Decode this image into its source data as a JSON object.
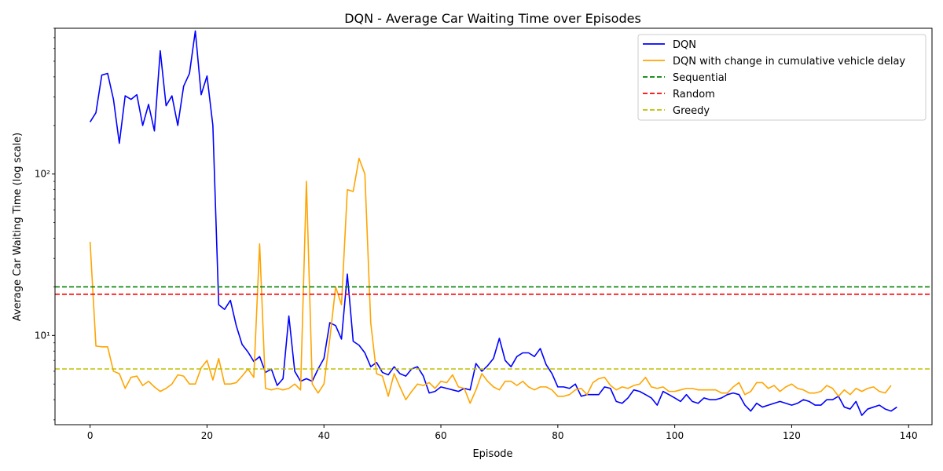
{
  "chart_data": {
    "type": "line",
    "title": "DQN - Average Car Waiting Time over Episodes",
    "xlabel": "Episode",
    "ylabel": "Average Car Waiting Time (log scale)",
    "xlim": [
      -6,
      144
    ],
    "ylim": [
      2.8,
      800
    ],
    "yscale": "log",
    "x_ticks": [
      0,
      20,
      40,
      60,
      80,
      100,
      120,
      140
    ],
    "y_ticks": [
      10,
      100
    ],
    "y_tick_labels": [
      "10¹",
      "10²"
    ],
    "grid": false,
    "legend_position": "top-right",
    "series": [
      {
        "name": "DQN",
        "color": "#0000ff",
        "style": "solid",
        "x_start": 0,
        "values": [
          210,
          240,
          410,
          420,
          290,
          155,
          305,
          290,
          310,
          200,
          270,
          185,
          580,
          265,
          305,
          200,
          350,
          420,
          770,
          310,
          405,
          200,
          15.5,
          14.5,
          16.5,
          11.5,
          8.8,
          7.9,
          6.9,
          7.4,
          5.9,
          6.2,
          4.9,
          5.4,
          13.2,
          6.0,
          5.2,
          5.4,
          5.2,
          6.2,
          7.2,
          12.0,
          11.5,
          9.5,
          24.0,
          9.2,
          8.7,
          7.8,
          6.4,
          6.8,
          5.9,
          5.7,
          6.4,
          5.8,
          5.6,
          6.2,
          6.4,
          5.6,
          4.4,
          4.5,
          4.8,
          4.7,
          4.6,
          4.5,
          4.7,
          4.6,
          6.7,
          6.0,
          6.5,
          7.2,
          9.6,
          7.0,
          6.4,
          7.4,
          7.8,
          7.8,
          7.4,
          8.3,
          6.6,
          5.8,
          4.8,
          4.8,
          4.7,
          5.0,
          4.2,
          4.3,
          4.3,
          4.3,
          4.8,
          4.7,
          3.9,
          3.8,
          4.1,
          4.6,
          4.5,
          4.3,
          4.1,
          3.7,
          4.5,
          4.3,
          4.1,
          3.9,
          4.3,
          3.9,
          3.8,
          4.1,
          4.0,
          4.0,
          4.1,
          4.3,
          4.4,
          4.3,
          3.7,
          3.4,
          3.8,
          3.6,
          3.7,
          3.8,
          3.9,
          3.8,
          3.7,
          3.8,
          4.0,
          3.9,
          3.7,
          3.7,
          4.0,
          4.0,
          4.2,
          3.6,
          3.5,
          3.9,
          3.2,
          3.5,
          3.6,
          3.7,
          3.5,
          3.4,
          3.6
        ]
      },
      {
        "name": "DQN with change in cumulative vehicle delay",
        "color": "#ffa500",
        "style": "solid",
        "x_start": 0,
        "values": [
          38,
          8.6,
          8.5,
          8.5,
          6.0,
          5.8,
          4.7,
          5.5,
          5.6,
          4.9,
          5.2,
          4.8,
          4.5,
          4.7,
          5.0,
          5.7,
          5.6,
          5.0,
          5.0,
          6.3,
          7.0,
          5.3,
          7.2,
          5.0,
          5.0,
          5.1,
          5.6,
          6.2,
          5.5,
          37.0,
          4.7,
          4.6,
          4.7,
          4.6,
          4.7,
          5.0,
          4.6,
          90,
          5.0,
          4.4,
          5.0,
          9.5,
          20.0,
          15.5,
          80,
          78,
          125,
          100,
          12.0,
          5.8,
          5.6,
          4.2,
          5.8,
          4.8,
          4.0,
          4.5,
          5.0,
          4.9,
          5.1,
          4.7,
          5.2,
          5.1,
          5.7,
          4.8,
          4.7,
          3.8,
          4.6,
          5.8,
          5.2,
          4.8,
          4.6,
          5.2,
          5.2,
          4.9,
          5.2,
          4.8,
          4.6,
          4.8,
          4.8,
          4.6,
          4.2,
          4.2,
          4.3,
          4.6,
          4.7,
          4.3,
          5.1,
          5.4,
          5.5,
          4.9,
          4.6,
          4.8,
          4.7,
          4.9,
          5.0,
          5.5,
          4.8,
          4.7,
          4.8,
          4.5,
          4.5,
          4.6,
          4.7,
          4.7,
          4.6,
          4.6,
          4.6,
          4.6,
          4.4,
          4.4,
          4.8,
          5.1,
          4.3,
          4.5,
          5.1,
          5.1,
          4.7,
          4.9,
          4.5,
          4.8,
          5.0,
          4.7,
          4.6,
          4.4,
          4.4,
          4.5,
          4.9,
          4.7,
          4.2,
          4.6,
          4.3,
          4.7,
          4.5,
          4.7,
          4.8,
          4.5,
          4.4,
          4.9
        ]
      },
      {
        "name": "Sequential",
        "color": "#008000",
        "style": "dashed",
        "constant": 20.0
      },
      {
        "name": "Random",
        "color": "#ff0000",
        "style": "dashed",
        "constant": 18.0
      },
      {
        "name": "Greedy",
        "color": "#bfbf00",
        "style": "dashed",
        "constant": 6.2
      }
    ]
  }
}
